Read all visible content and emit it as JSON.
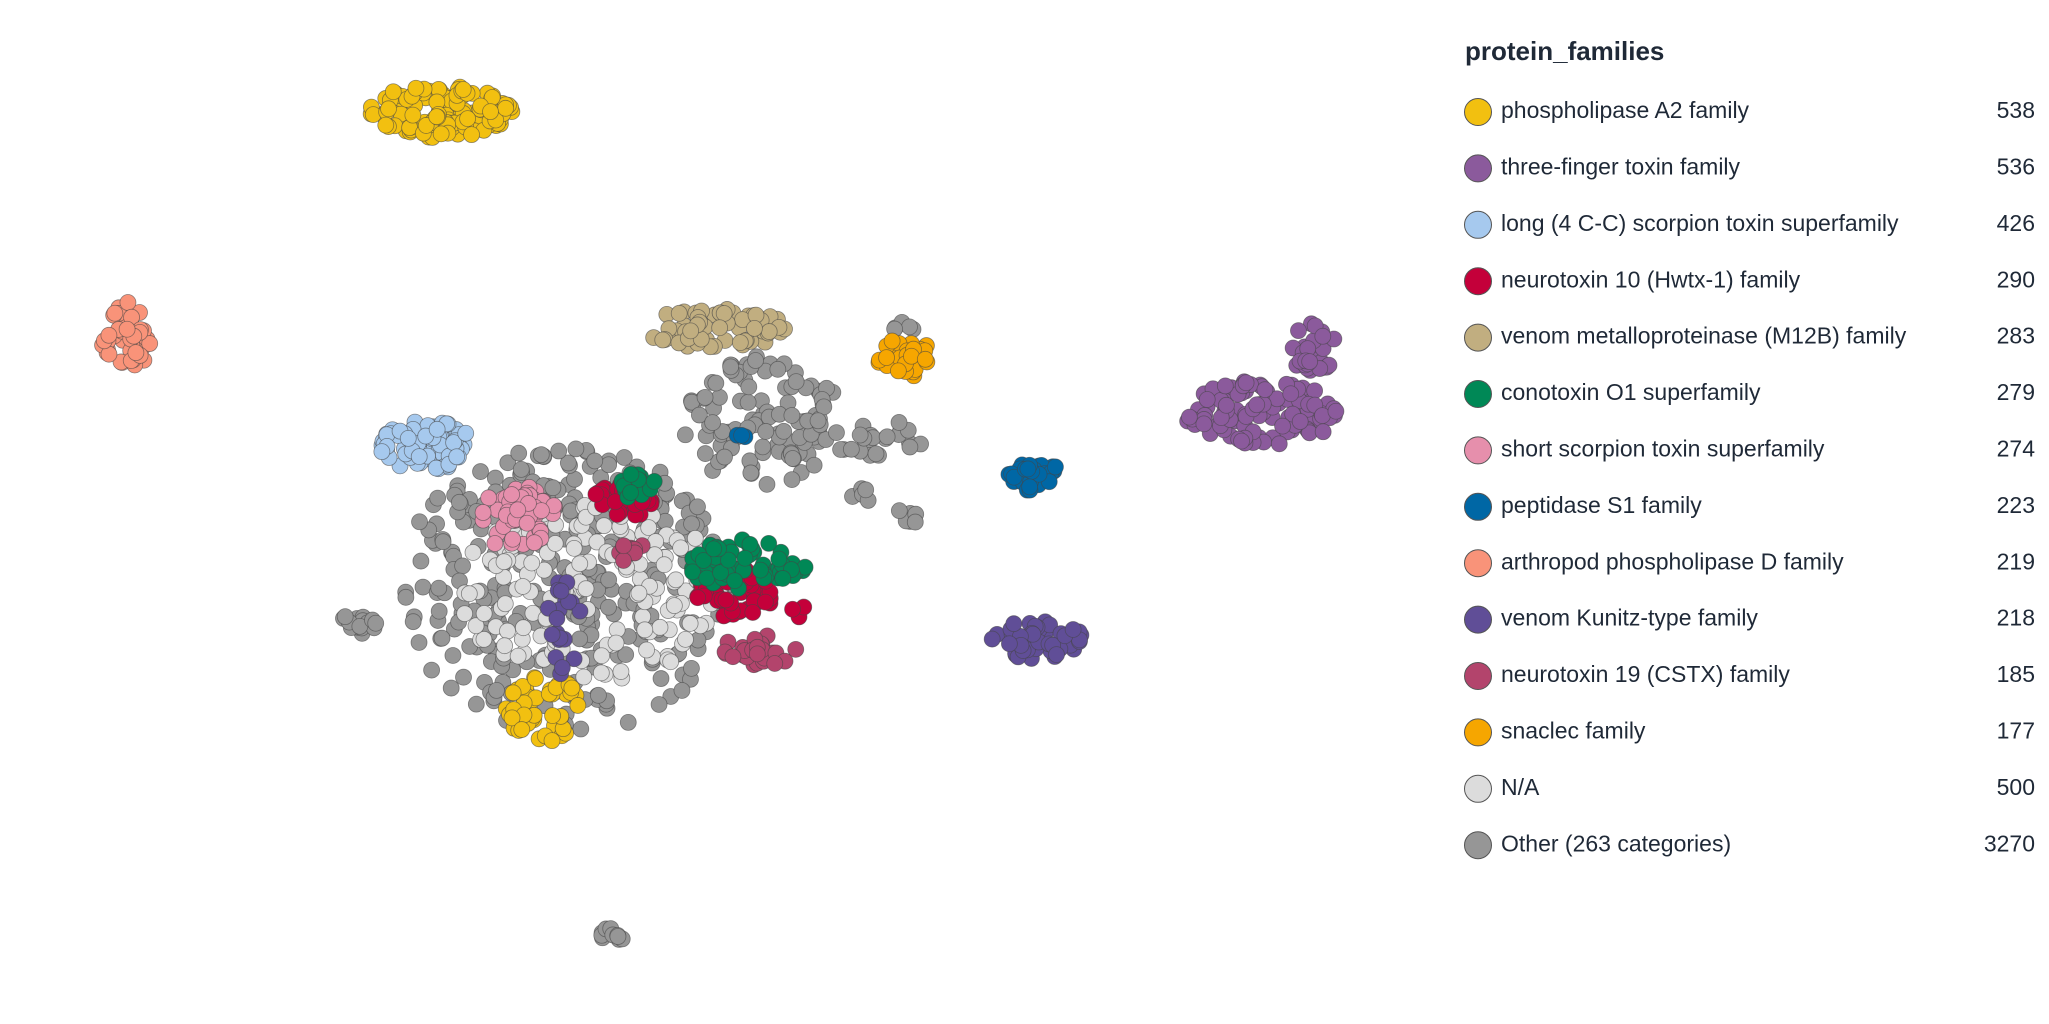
{
  "legend": {
    "title": "protein_families",
    "items": [
      {
        "label": "phospholipase A2 family",
        "count": 538,
        "color": "#f2c010"
      },
      {
        "label": "three-finger toxin family",
        "count": 536,
        "color": "#8b5a9c"
      },
      {
        "label": "long (4 C-C) scorpion toxin superfamily",
        "count": 426,
        "color": "#a6c9ee"
      },
      {
        "label": "neurotoxin 10 (Hwtx-1) family",
        "count": 290,
        "color": "#c4003a"
      },
      {
        "label": "venom metalloproteinase (M12B) family",
        "count": 283,
        "color": "#c1ae80"
      },
      {
        "label": "conotoxin O1 superfamily",
        "count": 279,
        "color": "#008856"
      },
      {
        "label": "short scorpion toxin superfamily",
        "count": 274,
        "color": "#e68fac"
      },
      {
        "label": "peptidase S1 family",
        "count": 223,
        "color": "#0067a5"
      },
      {
        "label": "arthropod phospholipase D family",
        "count": 219,
        "color": "#f99379"
      },
      {
        "label": "venom Kunitz-type family",
        "count": 218,
        "color": "#604e97"
      },
      {
        "label": "neurotoxin 19 (CSTX) family",
        "count": 185,
        "color": "#b3446c"
      },
      {
        "label": "snaclec family",
        "count": 177,
        "color": "#f6a600"
      },
      {
        "label": "N/A",
        "count": 500,
        "color": "#dcdcdc"
      },
      {
        "label": "Other (263 categories)",
        "count": 3270,
        "color": "#969696"
      }
    ]
  }
}
